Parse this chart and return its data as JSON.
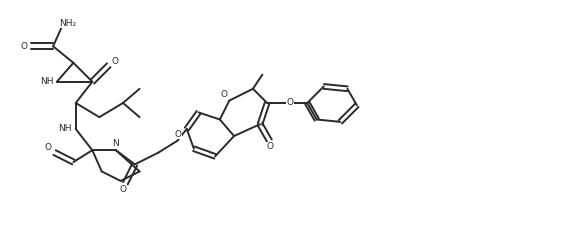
{
  "background_color": "#ffffff",
  "line_color": "#2a2a2a",
  "line_width": 1.4,
  "fig_width": 5.72,
  "fig_height": 2.39,
  "dpi": 100,
  "xlim": [
    0,
    11.5
  ],
  "ylim": [
    0,
    5.0
  ]
}
